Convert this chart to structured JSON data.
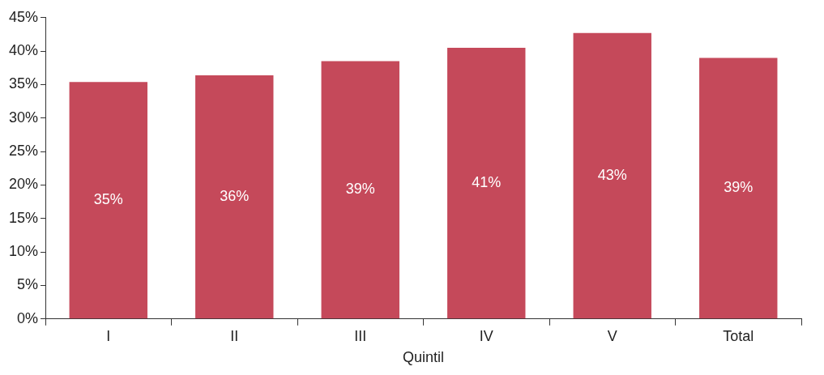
{
  "chart_data": {
    "type": "bar",
    "xlabel": "Quintil",
    "categories": [
      "I",
      "II",
      "III",
      "IV",
      "V",
      "Total"
    ],
    "values": [
      35.4,
      36.4,
      38.5,
      40.5,
      42.7,
      39.0
    ],
    "value_labels": [
      "35%",
      "36%",
      "39%",
      "41%",
      "43%",
      "39%"
    ],
    "color": "#c5495a",
    "ylim": [
      0,
      45
    ],
    "yticks": [
      {
        "value": 0,
        "label": "0%"
      },
      {
        "value": 5,
        "label": "5%"
      },
      {
        "value": 10,
        "label": "10%"
      },
      {
        "value": 15,
        "label": "15%"
      },
      {
        "value": 20,
        "label": "20%"
      },
      {
        "value": 25,
        "label": "25%"
      },
      {
        "value": 30,
        "label": "30%"
      },
      {
        "value": 35,
        "label": "35%"
      },
      {
        "value": 40,
        "label": "40%"
      },
      {
        "value": 45,
        "label": "45%"
      }
    ],
    "grid": false
  }
}
